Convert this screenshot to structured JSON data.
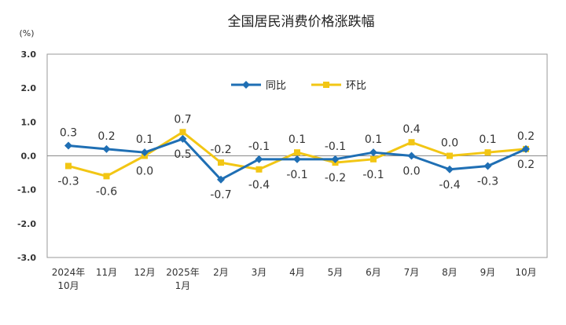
{
  "chart_data": {
    "type": "line",
    "title": "全国居民消费价格涨跌幅",
    "ylabel": "(%)",
    "ylim": [
      -3.0,
      3.0
    ],
    "yticks": [
      "3.0",
      "2.0",
      "1.0",
      "0.0",
      "-1.0",
      "-2.0",
      "-3.0"
    ],
    "categories": [
      [
        "2024年",
        "10月"
      ],
      [
        "11月"
      ],
      [
        "12月"
      ],
      [
        "2025年",
        "1月"
      ],
      [
        "2月"
      ],
      [
        "3月"
      ],
      [
        "4月"
      ],
      [
        "5月"
      ],
      [
        "6月"
      ],
      [
        "7月"
      ],
      [
        "8月"
      ],
      [
        "9月"
      ],
      [
        "10月"
      ]
    ],
    "legend_position": "top-center",
    "series": [
      {
        "name": "同比",
        "color": "#1f6fb4",
        "values": [
          0.3,
          0.2,
          0.1,
          0.5,
          -0.7,
          -0.1,
          -0.1,
          -0.1,
          0.1,
          0.0,
          -0.4,
          -0.3,
          0.2
        ],
        "labels": [
          "0.3",
          "0.2",
          "0.1",
          "0.5",
          "-0.7",
          "-0.1",
          "-0.1",
          "-0.1",
          "0.1",
          "0.0",
          "-0.4",
          "-0.3",
          "0.2"
        ]
      },
      {
        "name": "环比",
        "color": "#f2c614",
        "values": [
          -0.3,
          -0.6,
          0.0,
          0.7,
          -0.2,
          -0.4,
          0.1,
          -0.2,
          -0.1,
          0.4,
          0.0,
          0.1,
          0.2
        ],
        "labels": [
          "-0.3",
          "-0.6",
          "0.0",
          "0.7",
          "-0.2",
          "-0.4",
          "0.1",
          "-0.2",
          "-0.1",
          "0.4",
          "0.0",
          "0.1",
          "0.2"
        ]
      }
    ]
  }
}
